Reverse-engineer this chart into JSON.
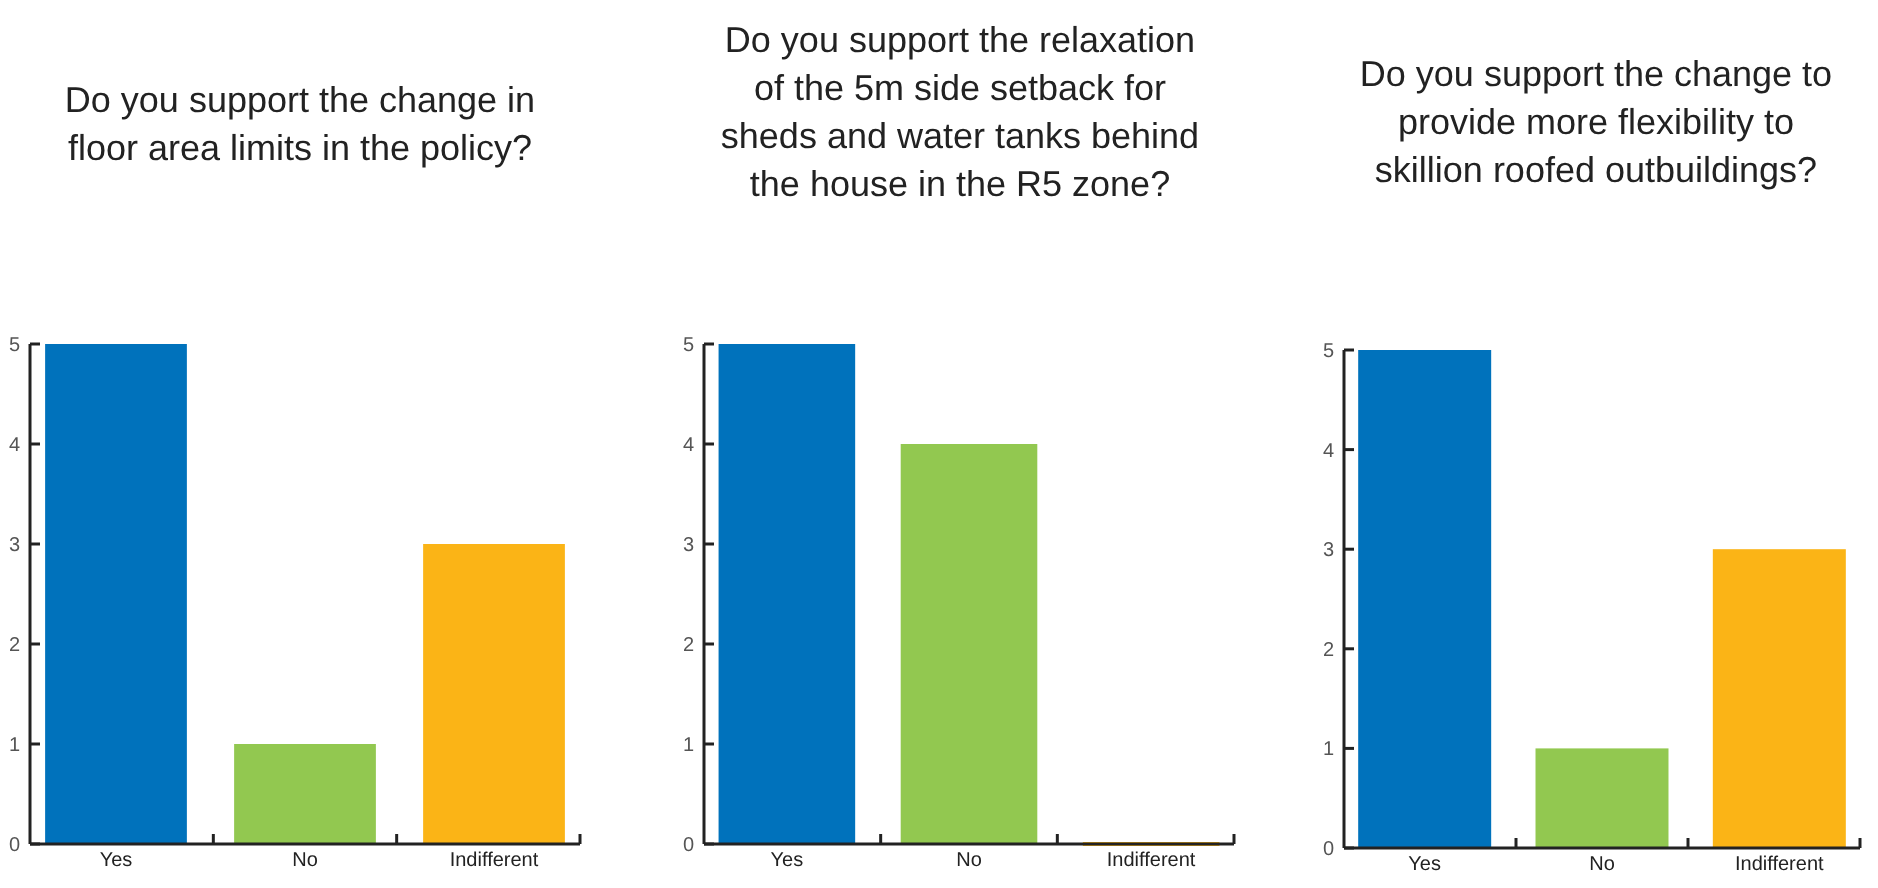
{
  "chart_data": [
    {
      "type": "bar",
      "title": "Do you support the change in floor area limits in the policy?",
      "categories": [
        "Yes",
        "No",
        "Indifferent"
      ],
      "values": [
        5,
        1,
        3
      ],
      "colors": [
        "#0072bc",
        "#92c850",
        "#fbb416"
      ],
      "ylim": [
        0,
        5
      ],
      "yticks": [
        0,
        1,
        2,
        3,
        4,
        5
      ],
      "grid": false
    },
    {
      "type": "bar",
      "title": "Do you support the relaxation of the 5m side setback for sheds and water tanks behind the house in the R5 zone?",
      "categories": [
        "Yes",
        "No",
        "Indifferent"
      ],
      "values": [
        5,
        4,
        0
      ],
      "colors": [
        "#0072bc",
        "#92c850",
        "#fbb416"
      ],
      "ylim": [
        0,
        5
      ],
      "yticks": [
        0,
        1,
        2,
        3,
        4,
        5
      ],
      "grid": false
    },
    {
      "type": "bar",
      "title": "Do you support the change to provide more flexibility to skillion roofed outbuildings?",
      "categories": [
        "Yes",
        "No",
        "Indifferent"
      ],
      "values": [
        5,
        1,
        3
      ],
      "colors": [
        "#0072bc",
        "#92c850",
        "#fbb416"
      ],
      "ylim": [
        0,
        5
      ],
      "yticks": [
        0,
        1,
        2,
        3,
        4,
        5
      ],
      "grid": false
    }
  ]
}
